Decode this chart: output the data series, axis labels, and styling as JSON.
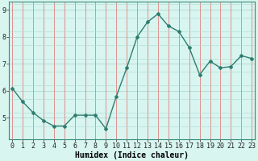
{
  "x": [
    0,
    1,
    2,
    3,
    4,
    5,
    6,
    7,
    8,
    9,
    10,
    11,
    12,
    13,
    14,
    15,
    16,
    17,
    18,
    19,
    20,
    21,
    22,
    23
  ],
  "y": [
    6.1,
    5.6,
    5.2,
    4.9,
    4.7,
    4.7,
    5.1,
    5.1,
    5.1,
    4.6,
    5.8,
    6.85,
    8.0,
    8.55,
    8.85,
    8.4,
    8.2,
    7.6,
    6.6,
    7.1,
    6.85,
    6.9,
    7.3,
    7.2
  ],
  "line_color": "#2e7d6e",
  "marker": "D",
  "marker_size": 2,
  "bg_color": "#d8f5f0",
  "vgrid_color": "#e08080",
  "hgrid_color": "#b0d8d0",
  "xlabel": "Humidex (Indice chaleur)",
  "xlabel_fontsize": 7,
  "tick_fontsize": 6,
  "ylim": [
    4.2,
    9.3
  ],
  "yticks": [
    5,
    6,
    7,
    8,
    9
  ],
  "xticks": [
    0,
    1,
    2,
    3,
    4,
    5,
    6,
    7,
    8,
    9,
    10,
    11,
    12,
    13,
    14,
    15,
    16,
    17,
    18,
    19,
    20,
    21,
    22,
    23
  ],
  "xlim": [
    -0.3,
    23.3
  ],
  "linewidth": 1.0
}
